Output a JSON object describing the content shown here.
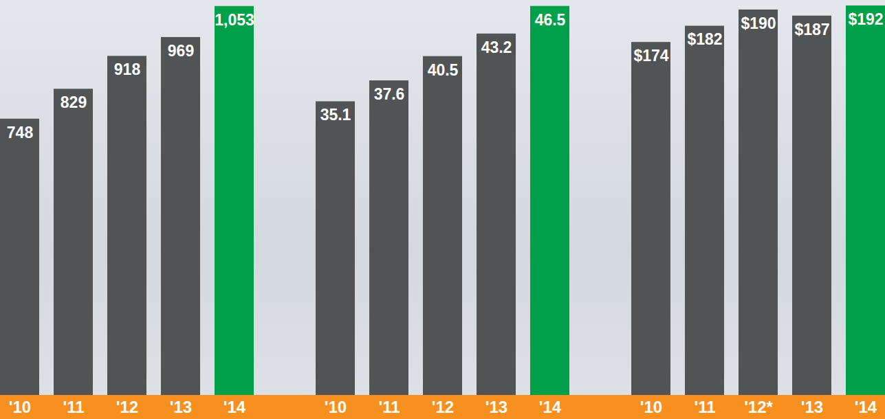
{
  "chart_data": [
    {
      "type": "bar",
      "categories": [
        "'10",
        "'11",
        "'12",
        "'13",
        "'14"
      ],
      "values": [
        748,
        829,
        918,
        969,
        1053
      ],
      "value_labels": [
        "748",
        "829",
        "918",
        "969",
        "1,053"
      ],
      "colors": [
        "#525355",
        "#525355",
        "#525355",
        "#525355",
        "#00a04b"
      ],
      "ylim": [
        0,
        1060
      ],
      "data_labels": true,
      "tick_labels": "x",
      "grid": false
    },
    {
      "type": "bar",
      "categories": [
        "'10",
        "'11",
        "'12",
        "'13",
        "'14"
      ],
      "values": [
        35.1,
        37.6,
        40.5,
        43.2,
        46.5
      ],
      "colors": [
        "#525355",
        "#525355",
        "#525355",
        "#525355",
        "#00a04b"
      ],
      "ylim": [
        0,
        46.8
      ],
      "data_labels": true,
      "tick_labels": "x",
      "grid": false
    },
    {
      "type": "bar",
      "categories": [
        "'10",
        "'11",
        "'12*",
        "'13",
        "'14"
      ],
      "values": [
        174,
        182,
        190,
        187,
        192
      ],
      "value_labels": [
        "$174",
        "$182",
        "$190",
        "$187",
        "$192"
      ],
      "colors": [
        "#525355",
        "#525355",
        "#525355",
        "#525355",
        "#00a04b"
      ],
      "ylim": [
        0,
        193
      ],
      "data_labels": true,
      "tick_labels": "x",
      "grid": false
    }
  ]
}
